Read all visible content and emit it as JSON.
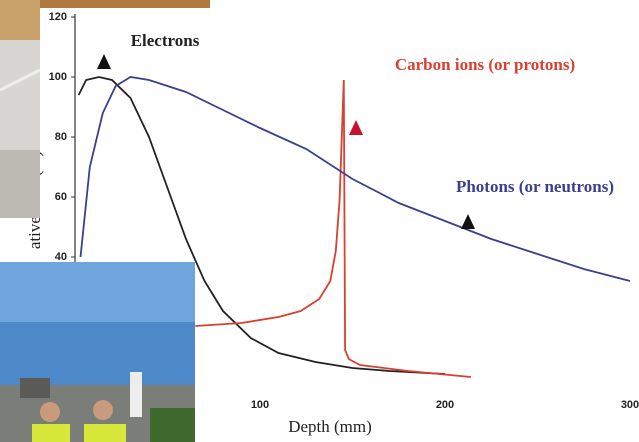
{
  "chart_data": {
    "type": "line",
    "ylabel": "ative dose (%)",
    "xlabel": "Depth (mm)",
    "xlim": [
      0,
      300
    ],
    "ylim": [
      0,
      120
    ],
    "xticks": [
      100,
      200,
      300
    ],
    "yticks": [
      40,
      60,
      80,
      100,
      120
    ],
    "series": [
      {
        "name": "Electrons",
        "color": "#222222",
        "x": [
          2,
          6,
          13,
          20,
          30,
          40,
          50,
          60,
          70,
          80,
          95,
          110,
          130,
          150,
          170,
          200
        ],
        "values": [
          94,
          99,
          100,
          99,
          93,
          80,
          63,
          46,
          32,
          22,
          13,
          8,
          5,
          3,
          2,
          1
        ]
      },
      {
        "name": "Carbon ions (or protons)",
        "color": "#d9402e",
        "x": [
          65,
          90,
          110,
          122,
          132,
          138,
          141,
          143,
          144.5,
          145.3,
          146,
          148,
          154,
          180,
          214
        ],
        "values": [
          17,
          18,
          20,
          22,
          26,
          32,
          42,
          59,
          85,
          99,
          9,
          6,
          4,
          2,
          0
        ]
      },
      {
        "name": "Photons (or neutrons)",
        "color": "#3a3f8f",
        "x": [
          3,
          8,
          15,
          22,
          30,
          40,
          60,
          80,
          100,
          125,
          150,
          175,
          200,
          225,
          250,
          275,
          300
        ],
        "values": [
          40,
          70,
          88,
          97,
          100,
          99,
          95,
          89,
          83,
          76,
          66,
          58,
          52,
          46,
          41,
          36,
          32
        ]
      }
    ]
  }
}
